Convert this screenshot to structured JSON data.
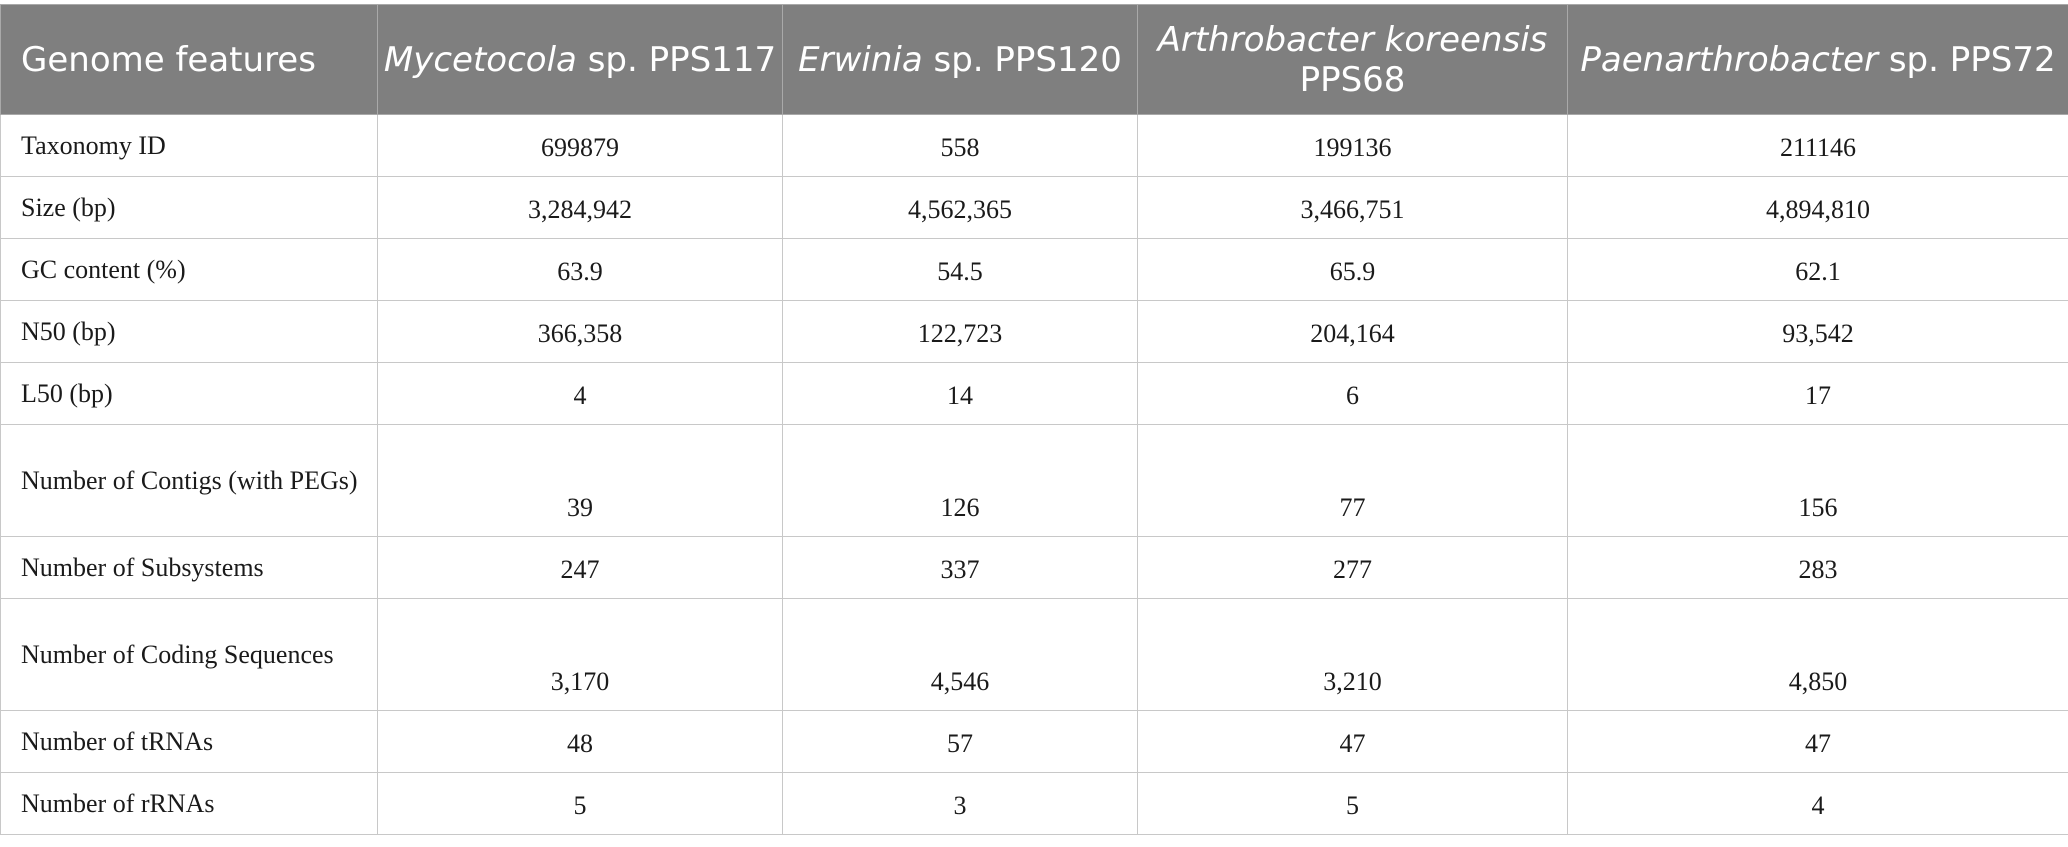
{
  "table": {
    "headers": [
      {
        "name": "",
        "suffix": "Genome features"
      },
      {
        "name": "Mycetocola",
        "suffix": " sp. PPS117"
      },
      {
        "name": "Erwinia",
        "suffix": " sp. PPS120"
      },
      {
        "name": "Arthrobacter koreensis",
        "suffix": " PPS68"
      },
      {
        "name": "Paenarthrobacter",
        "suffix": " sp. PPS72"
      }
    ],
    "rows": [
      {
        "label": "Taxonomy ID",
        "values": [
          "699879",
          "558",
          "199136",
          "211146"
        ]
      },
      {
        "label": "Size (bp)",
        "values": [
          "3,284,942",
          "4,562,365",
          "3,466,751",
          "4,894,810"
        ]
      },
      {
        "label": "GC content (%)",
        "values": [
          "63.9",
          "54.5",
          "65.9",
          "62.1"
        ]
      },
      {
        "label": "N50 (bp)",
        "values": [
          "366,358",
          "122,723",
          "204,164",
          "93,542"
        ]
      },
      {
        "label": "L50 (bp)",
        "values": [
          "4",
          "14",
          "6",
          "17"
        ]
      },
      {
        "label": "Number of Contigs (with PEGs)",
        "values": [
          "39",
          "126",
          "77",
          "156"
        ]
      },
      {
        "label": "Number of Subsystems",
        "values": [
          "247",
          "337",
          "277",
          "283"
        ]
      },
      {
        "label": "Number of Coding Sequences",
        "values": [
          "3,170",
          "4,546",
          "3,210",
          "4,850"
        ]
      },
      {
        "label": "Number of tRNAs",
        "values": [
          "48",
          "57",
          "47",
          "47"
        ]
      },
      {
        "label": "Number of rRNAs",
        "values": [
          "5",
          "3",
          "5",
          "4"
        ]
      }
    ]
  }
}
